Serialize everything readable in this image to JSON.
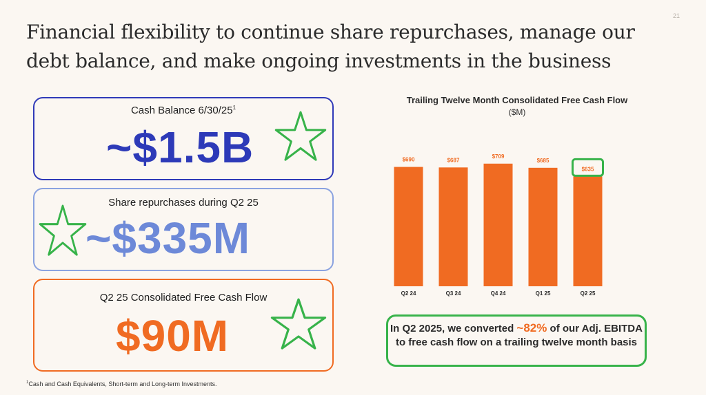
{
  "page_number": "21",
  "title": "Financial flexibility to continue share repurchases, manage our debt balance, and make ongoing investments in the business",
  "metrics": [
    {
      "label": "Cash Balance 6/30/25",
      "footnote_mark": "1",
      "value": "~$1.5B",
      "color": "#2d3ab8"
    },
    {
      "label": "Share repurchases during Q2 25",
      "footnote_mark": "",
      "value": "~$335M",
      "color": "#6d89d8"
    },
    {
      "label": "Q2 25 Consolidated Free Cash Flow",
      "footnote_mark": "",
      "value": "$90M",
      "color": "#f06b22"
    }
  ],
  "footnote": {
    "mark": "1",
    "text": "Cash and Cash Equivalents, Short-term and Long-term Investments."
  },
  "chart_data": {
    "type": "bar",
    "title": "Trailing Twelve Month Consolidated Free Cash Flow",
    "subtitle": "($M)",
    "categories": [
      "Q2 24",
      "Q3 24",
      "Q4 24",
      "Q1 25",
      "Q2 25"
    ],
    "values": [
      690,
      687,
      709,
      685,
      635
    ],
    "value_labels": [
      "$690",
      "$687",
      "$709",
      "$685",
      "$635"
    ],
    "highlighted_category": "Q2 25",
    "bar_color": "#f06b22",
    "highlight_color": "#37b34a",
    "grid": false
  },
  "callout": {
    "before": "In Q2 2025, we converted ",
    "highlight": "~82%",
    "after": " of our Adj. EBITDA to free cash flow on a trailing twelve month basis"
  },
  "annotation_color": "#37b34a"
}
